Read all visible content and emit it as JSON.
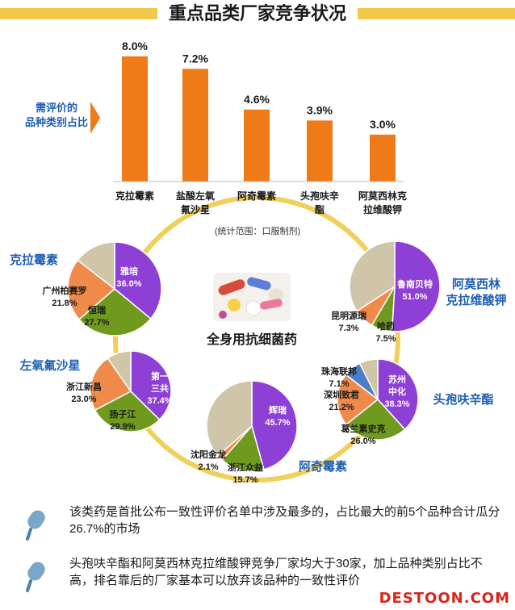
{
  "title": "重点品类厂家竞争状况",
  "side_label": [
    "需评价的",
    "品种类别占比"
  ],
  "scope_note": "(统计范围：口服制剂)",
  "center_label": "全身用抗细菌药",
  "chart_data": [
    {
      "type": "bar",
      "title": "",
      "categories": [
        [
          "克拉霉素"
        ],
        [
          "盐酸左氧",
          "氟沙星"
        ],
        [
          "阿奇霉素"
        ],
        [
          "头孢呋辛",
          "酯"
        ],
        [
          "阿莫西林克",
          "拉维酸钾"
        ]
      ],
      "values": [
        8.0,
        7.2,
        4.6,
        3.9,
        3.0
      ],
      "value_labels": [
        "8.0%",
        "7.2%",
        "4.6%",
        "3.9%",
        "3.0%"
      ],
      "color": "#ef7a18"
    },
    {
      "type": "pie",
      "title": "克拉霉素",
      "slices": [
        {
          "label": [
            "雅培"
          ],
          "value": 36.0,
          "value_label": "36.0%",
          "color": "#8e3fd6"
        },
        {
          "label": [
            "恒瑞"
          ],
          "value": 27.7,
          "value_label": "27.7%",
          "color": "#6f9a1e"
        },
        {
          "label": [
            "广州柏赛罗"
          ],
          "value": 21.8,
          "value_label": "21.8%",
          "color": "#f08a4a"
        },
        {
          "label": [],
          "value": 14.5,
          "value_label": "",
          "color": "#cfc5a8"
        }
      ]
    },
    {
      "type": "pie",
      "title": "左氧氟沙星",
      "slices": [
        {
          "label": [
            "第一",
            "三共"
          ],
          "value": 37.4,
          "value_label": "37.4%",
          "color": "#8e3fd6"
        },
        {
          "label": [
            "扬子江"
          ],
          "value": 29.9,
          "value_label": "29.9%",
          "color": "#6f9a1e"
        },
        {
          "label": [
            "浙江新昌"
          ],
          "value": 23.0,
          "value_label": "23.0%",
          "color": "#f08a4a"
        },
        {
          "label": [],
          "value": 9.7,
          "value_label": "",
          "color": "#cfc5a8"
        }
      ]
    },
    {
      "type": "pie",
      "title": "阿奇霉素",
      "slices": [
        {
          "label": [
            "辉瑞"
          ],
          "value": 45.7,
          "value_label": "45.7%",
          "color": "#8e3fd6"
        },
        {
          "label": [
            "浙江众益"
          ],
          "value": 15.7,
          "value_label": "15.7%",
          "color": "#6f9a1e"
        },
        {
          "label": [
            "沈阳金龙"
          ],
          "value": 2.1,
          "value_label": "2.1%",
          "color": "#f08a4a"
        },
        {
          "label": [],
          "value": 36.5,
          "value_label": "",
          "color": "#cfc5a8"
        }
      ]
    },
    {
      "type": "pie",
      "title": "头孢呋辛酯",
      "slices": [
        {
          "label": [
            "苏州",
            "中化"
          ],
          "value": 38.3,
          "value_label": "38.3%",
          "color": "#8e3fd6"
        },
        {
          "label": [
            "葛兰素史克"
          ],
          "value": 26.0,
          "value_label": "26.0%",
          "color": "#6f9a1e"
        },
        {
          "label": [
            "深圳致君"
          ],
          "value": 21.2,
          "value_label": "21.2%",
          "color": "#f08a4a"
        },
        {
          "label": [
            "珠海联邦"
          ],
          "value": 7.1,
          "value_label": "7.1%",
          "color": "#4a7ec8"
        },
        {
          "label": [],
          "value": 7.4,
          "value_label": "",
          "color": "#cfc5a8"
        }
      ]
    },
    {
      "type": "pie",
      "title": "阿莫西林克拉维酸钾",
      "title_lines": [
        "阿莫西林",
        "克拉维酸钾"
      ],
      "slices": [
        {
          "label": [
            "鲁南贝特"
          ],
          "value": 51.0,
          "value_label": "51.0%",
          "color": "#8e3fd6"
        },
        {
          "label": [
            "哈药"
          ],
          "value": 7.5,
          "value_label": "7.5%",
          "color": "#6f9a1e"
        },
        {
          "label": [
            "昆明源瑞"
          ],
          "value": 7.3,
          "value_label": "7.3%",
          "color": "#f08a4a"
        },
        {
          "label": [],
          "value": 34.2,
          "value_label": "",
          "color": "#cfc5a8"
        }
      ]
    }
  ],
  "notes": [
    "该类药是首批公布一致性评价名单中涉及最多的，占比最大的前5个品种合计瓜分26.7%的市场",
    "头孢呋辛酯和阿莫西林克拉维酸钾竞争厂家均大于30家，加上品种类别占比不高，排名靠后的厂家基本可以放弃该品种的一致性评价"
  ],
  "logo": "DESTOON.COM",
  "icons": [
    "microphone-icon",
    "pill-image"
  ],
  "colors": {
    "accent": "#ef7a18",
    "title_band": "#f2c84b",
    "pie_title": "#1f5fb3",
    "ring": "#f0cf5a"
  }
}
